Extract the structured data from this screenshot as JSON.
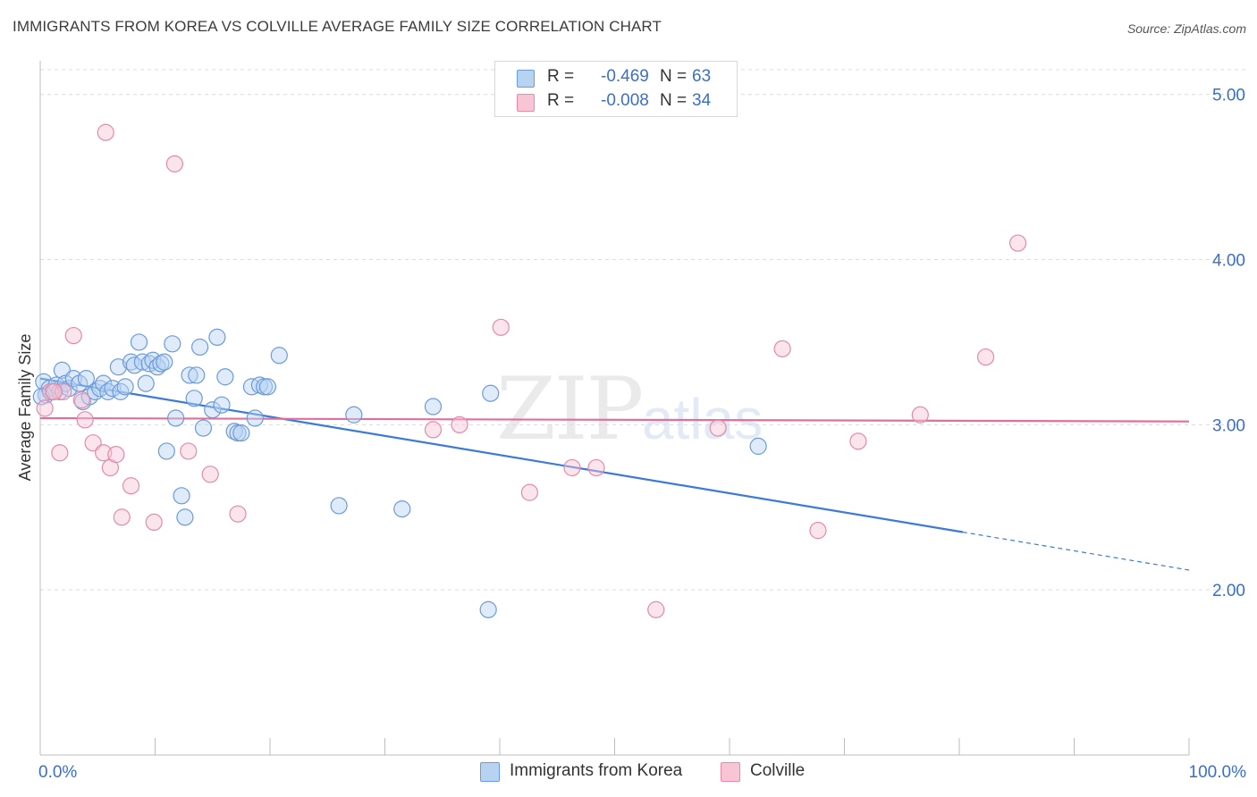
{
  "title": "IMMIGRANTS FROM KOREA VS COLVILLE AVERAGE FAMILY SIZE CORRELATION CHART",
  "source": "Source: ZipAtlas.com",
  "watermark": {
    "zip": "ZIP",
    "atlas": "atlas"
  },
  "legend": {
    "series": [
      {
        "r_label": "R =",
        "r_value": "-0.469",
        "n_label": "N =",
        "n_value": "63",
        "fill": "#b7d3f2",
        "stroke": "#6b9bdc"
      },
      {
        "r_label": "R =",
        "r_value": "-0.008",
        "n_label": "N =",
        "n_value": "34",
        "fill": "#f7c5d4",
        "stroke": "#e58aa8"
      }
    ]
  },
  "bottom_legend": [
    "Immigrants from Korea",
    "Colville"
  ],
  "chart_data": {
    "type": "scatter",
    "title": "IMMIGRANTS FROM KOREA VS COLVILLE AVERAGE FAMILY SIZE CORRELATION CHART",
    "xlabel": "",
    "ylabel": "Average Family Size",
    "xlim": [
      0,
      100
    ],
    "ylim": [
      1.0,
      5.15
    ],
    "x_tick_labels": [
      "0.0%",
      "100.0%"
    ],
    "y_ticks": [
      2.0,
      3.0,
      4.0,
      5.0
    ],
    "y_tick_labels": [
      "2.00",
      "3.00",
      "4.00",
      "5.00"
    ],
    "grid": true,
    "colors": {
      "korea": "#3a7bd5",
      "colville": "#e0709a",
      "tick_label": "#3a6fc8"
    },
    "series": [
      {
        "name": "Immigrants from Korea",
        "color": "#6b9bdc",
        "points": [
          [
            0.3,
            3.26
          ],
          [
            0.5,
            3.18
          ],
          [
            0.8,
            3.22
          ],
          [
            1.1,
            3.2
          ],
          [
            1.4,
            3.24
          ],
          [
            1.7,
            3.2
          ],
          [
            1.9,
            3.33
          ],
          [
            2.2,
            3.25
          ],
          [
            2.5,
            3.22
          ],
          [
            2.9,
            3.28
          ],
          [
            3.4,
            3.25
          ],
          [
            3.7,
            3.14
          ],
          [
            4.0,
            3.28
          ],
          [
            4.3,
            3.17
          ],
          [
            4.8,
            3.2
          ],
          [
            5.2,
            3.22
          ],
          [
            5.5,
            3.25
          ],
          [
            5.9,
            3.2
          ],
          [
            6.3,
            3.22
          ],
          [
            6.8,
            3.35
          ],
          [
            7.0,
            3.2
          ],
          [
            7.4,
            3.23
          ],
          [
            7.9,
            3.38
          ],
          [
            8.2,
            3.36
          ],
          [
            8.6,
            3.5
          ],
          [
            8.9,
            3.38
          ],
          [
            9.2,
            3.25
          ],
          [
            9.5,
            3.37
          ],
          [
            9.8,
            3.39
          ],
          [
            10.2,
            3.35
          ],
          [
            10.5,
            3.37
          ],
          [
            10.8,
            3.38
          ],
          [
            11.0,
            2.84
          ],
          [
            11.5,
            3.49
          ],
          [
            11.8,
            3.04
          ],
          [
            12.3,
            2.57
          ],
          [
            12.6,
            2.44
          ],
          [
            13.0,
            3.3
          ],
          [
            13.4,
            3.16
          ],
          [
            13.6,
            3.3
          ],
          [
            13.9,
            3.47
          ],
          [
            14.2,
            2.98
          ],
          [
            15.0,
            3.09
          ],
          [
            15.4,
            3.53
          ],
          [
            15.8,
            3.12
          ],
          [
            16.1,
            3.29
          ],
          [
            16.9,
            2.96
          ],
          [
            17.2,
            2.95
          ],
          [
            17.5,
            2.95
          ],
          [
            18.4,
            3.23
          ],
          [
            18.7,
            3.04
          ],
          [
            19.1,
            3.24
          ],
          [
            19.5,
            3.23
          ],
          [
            19.8,
            3.23
          ],
          [
            20.8,
            3.42
          ],
          [
            26.0,
            2.51
          ],
          [
            27.3,
            3.06
          ],
          [
            31.5,
            2.49
          ],
          [
            34.2,
            3.11
          ],
          [
            39.2,
            3.19
          ],
          [
            39.0,
            1.88
          ],
          [
            62.5,
            2.87
          ],
          [
            0.1,
            3.17
          ]
        ],
        "trend": {
          "x": [
            0,
            80.3
          ],
          "y": [
            3.28,
            2.35
          ]
        },
        "trend_dashed": {
          "x": [
            80.3,
            100
          ],
          "y": [
            2.35,
            2.12
          ]
        }
      },
      {
        "name": "Colville",
        "color": "#e58aa8",
        "points": [
          [
            0.4,
            3.1
          ],
          [
            0.9,
            3.2
          ],
          [
            1.7,
            2.83
          ],
          [
            2.0,
            3.2
          ],
          [
            2.9,
            3.54
          ],
          [
            3.6,
            3.15
          ],
          [
            3.9,
            3.03
          ],
          [
            4.6,
            2.89
          ],
          [
            5.5,
            2.83
          ],
          [
            6.1,
            2.74
          ],
          [
            6.6,
            2.82
          ],
          [
            7.1,
            2.44
          ],
          [
            7.9,
            2.63
          ],
          [
            9.9,
            2.41
          ],
          [
            11.7,
            4.58
          ],
          [
            12.9,
            2.84
          ],
          [
            14.8,
            2.7
          ],
          [
            5.7,
            4.77
          ],
          [
            17.2,
            2.46
          ],
          [
            34.2,
            2.97
          ],
          [
            36.5,
            3.0
          ],
          [
            40.1,
            3.59
          ],
          [
            42.6,
            2.59
          ],
          [
            46.3,
            2.74
          ],
          [
            48.4,
            2.74
          ],
          [
            53.6,
            1.88
          ],
          [
            59.0,
            2.98
          ],
          [
            64.6,
            3.46
          ],
          [
            67.7,
            2.36
          ],
          [
            71.2,
            2.9
          ],
          [
            76.6,
            3.06
          ],
          [
            82.3,
            3.41
          ],
          [
            85.1,
            4.1
          ],
          [
            1.2,
            3.2
          ]
        ],
        "trend": {
          "x": [
            0,
            100
          ],
          "y": [
            3.04,
            3.02
          ]
        }
      }
    ]
  }
}
